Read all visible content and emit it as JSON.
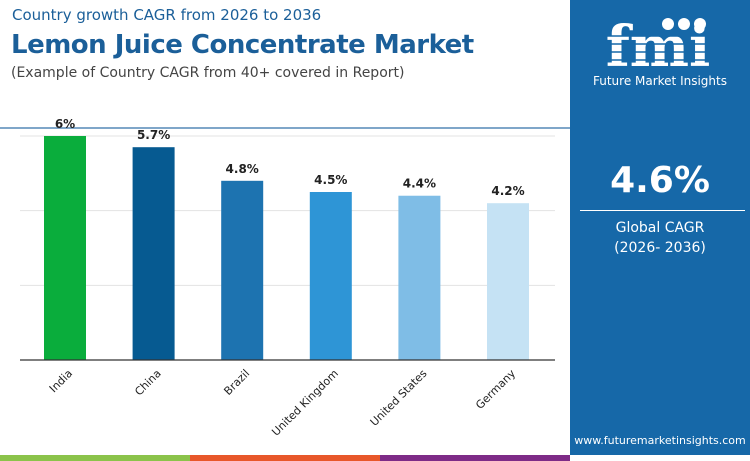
{
  "header": {
    "subtitle": "Country growth CAGR from 2026 to 2036",
    "title": "Lemon Juice Concentrate Market",
    "note": "(Example of Country CAGR from 40+ covered in Report)"
  },
  "panel": {
    "brand": "Future Market Insights",
    "logo_text": "fmi",
    "global_value": "4.6%",
    "global_label": "Global CAGR",
    "global_period": "(2026- 2036)",
    "website": "www.futuremarketinsights.com",
    "background": "#1668a8"
  },
  "bottom_bar_colors": [
    "#8bc34a",
    "#e8572a",
    "#7e2b87"
  ],
  "chart_data": {
    "type": "bar",
    "categories": [
      "India",
      "China",
      "Brazil",
      "United Kingdom",
      "United States",
      "Germany"
    ],
    "values": [
      6,
      5.7,
      4.8,
      4.5,
      4.4,
      4.2
    ],
    "data_labels": [
      "6%",
      "5.7%",
      "4.8%",
      "4.5%",
      "4.4%",
      "4.2%"
    ],
    "colors": [
      "#0aad3c",
      "#065a91",
      "#1d73b0",
      "#2e95d6",
      "#7fbde6",
      "#c5e2f4"
    ],
    "ylim": [
      0,
      6
    ],
    "grid": true
  }
}
